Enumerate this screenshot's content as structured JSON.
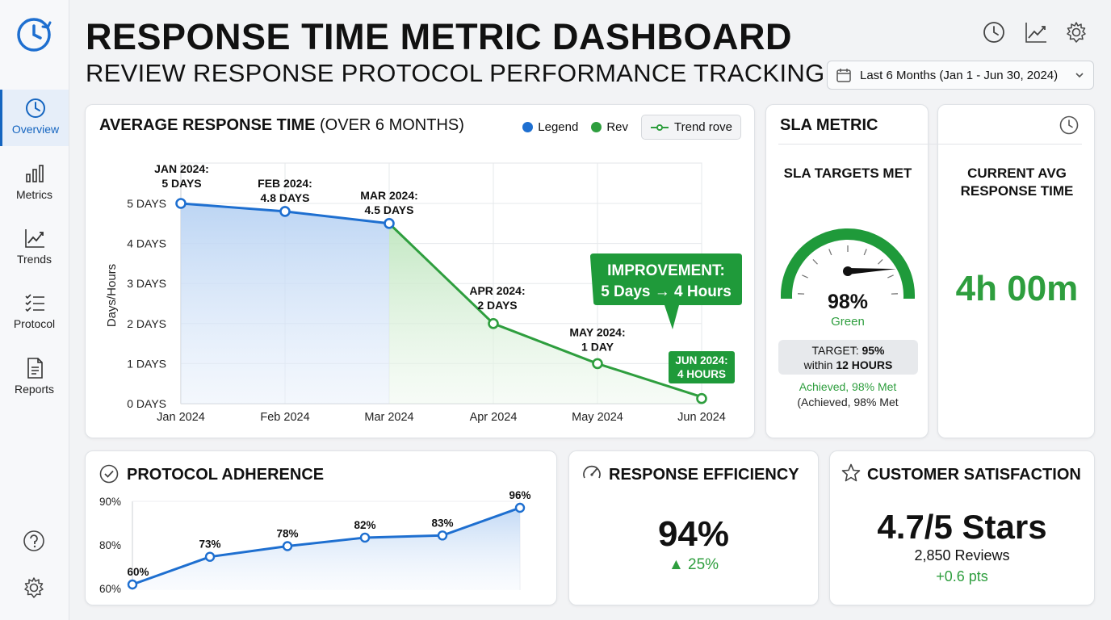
{
  "header": {
    "title": "RESPONSE TIME METRIC DASHBOARD",
    "subtitle": "REVIEW RESPONSE PROTOCOL PERFORMANCE TRACKING",
    "date_range": "Last 6 Months (Jan 1 - Jun 30, 2024)",
    "icons": [
      "clock-icon",
      "trend-chart-icon",
      "gear-icon"
    ]
  },
  "sidebar": {
    "items": [
      {
        "label": "Overview",
        "icon": "clock-icon",
        "active": true
      },
      {
        "label": "Metrics",
        "icon": "bar-chart-icon",
        "active": false
      },
      {
        "label": "Trends",
        "icon": "trend-line-icon",
        "active": false
      },
      {
        "label": "Protocol",
        "icon": "checklist-icon",
        "active": false
      },
      {
        "label": "Reports",
        "icon": "document-icon",
        "active": false
      }
    ],
    "bottom": [
      "help-icon",
      "settings-icon"
    ]
  },
  "avg_card": {
    "title_bold": "AVERAGE RESPONSE TIME",
    "title_light": " (OVER 6 MONTHS)",
    "legend": [
      {
        "label": "Legend",
        "color": "#1e6fd0"
      },
      {
        "label": "Rev",
        "color": "#2e9e3e"
      }
    ],
    "trend_button": "Trend rove",
    "callout_line1": "IMPROVEMENT:",
    "callout_line2": "5 Days → 4 Hours"
  },
  "chart_data": [
    {
      "type": "line",
      "ylabel": "Days/Hours",
      "x": [
        "Jan 2024",
        "Feb 2024",
        "Mar 2024",
        "Apr 2024",
        "May 2024",
        "Jun 2024"
      ],
      "y_ticks": [
        "0 DAYS",
        "1 DAYS",
        "2 DAYS",
        "3 DAYS",
        "4 DAYS",
        "5 DAYS"
      ],
      "ylim": [
        0,
        5
      ],
      "values": [
        5,
        4.8,
        4.5,
        2,
        1,
        0.167
      ],
      "point_labels": [
        [
          "JAN 2024:",
          "5 DAYS"
        ],
        [
          "FEB 2024:",
          "4.8 DAYS"
        ],
        [
          "MAR 2024:",
          "4.5 DAYS"
        ],
        [
          "APR 2024:",
          "2 DAYS"
        ],
        [
          "MAY 2024:",
          "1 DAY"
        ],
        [
          "JUN 2024:",
          "4 HOURS"
        ]
      ],
      "series_colors": {
        "before": "#1e6fd0",
        "after": "#2e9e3e"
      },
      "grid": true
    },
    {
      "type": "line",
      "y_ticks": [
        "60%",
        "80%",
        "90%"
      ],
      "values": [
        60,
        73,
        78,
        82,
        83,
        96
      ],
      "point_labels": [
        "60%",
        "73%",
        "78%",
        "82%",
        "83%",
        "96%"
      ],
      "color": "#1e6fd0",
      "grid": false
    }
  ],
  "sla": {
    "title": "SLA METRIC",
    "left_heading": "SLA TARGETS MET",
    "right_heading_1": "CURRENT AVG",
    "right_heading_2": "RESPONSE TIME",
    "gauge_min": "0",
    "gauge_max": "100",
    "gauge_value": 98,
    "gauge_pct": "98%",
    "gauge_status": "Green",
    "target_prefix": "TARGET: ",
    "target_value": "95%",
    "target_within": "within ",
    "target_hours": "12 HOURS",
    "achieved_1": "Achieved, 98% Met",
    "achieved_2": "(Achieved, 98% Met",
    "current_time": "4h 00m"
  },
  "adherence": {
    "title": "PROTOCOL ADHERENCE"
  },
  "efficiency": {
    "title": "RESPONSE EFFICIENCY",
    "value": "94%",
    "change": "▲ 25%"
  },
  "satisfaction": {
    "title": "CUSTOMER SATISFACTION",
    "value": "4.7/5 Stars",
    "reviews": "2,850 Reviews",
    "change": "+0.6 pts"
  },
  "colors": {
    "blue": "#1e6fd0",
    "green": "#2e9e3e",
    "callout_green": "#1f9a3a"
  }
}
